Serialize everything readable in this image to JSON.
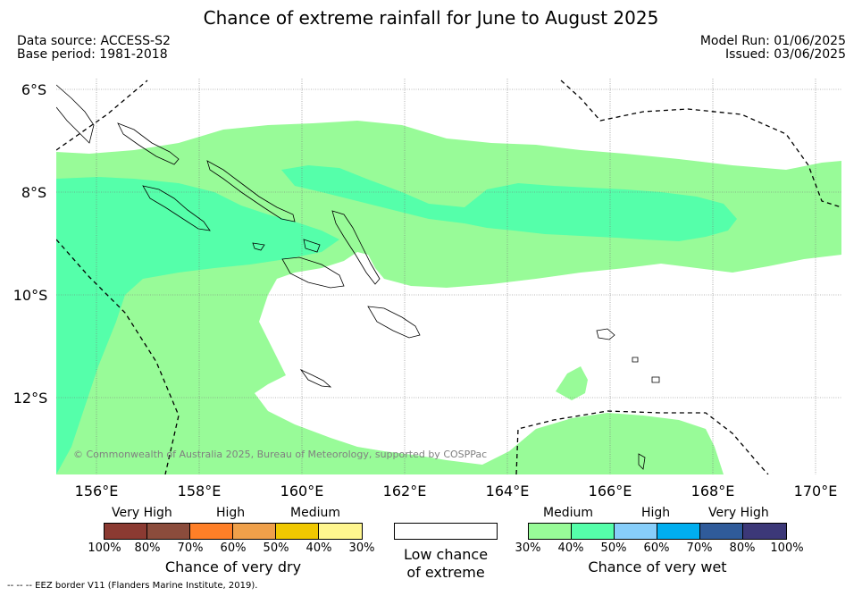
{
  "title": "Chance of extreme rainfall for June to August 2025",
  "meta": {
    "source": "Data source: ACCESS-S2",
    "base_period": "Base period: 1981-2018",
    "model_run": "Model Run: 01/06/2025",
    "issued": "Issued: 03/06/2025"
  },
  "map": {
    "lat_labels": [
      "6°S",
      "8°S",
      "10°S",
      "12°S"
    ],
    "lon_labels": [
      "156°E",
      "158°E",
      "160°E",
      "162°E",
      "164°E",
      "166°E",
      "168°E",
      "170°E"
    ],
    "credit": "© Commonwealth of Australia 2025, Bureau of Meteorology, supported by COSPPac"
  },
  "legend": {
    "dry": {
      "categories": [
        "Very High",
        "High",
        "Medium"
      ],
      "ticks": [
        "100%",
        "80%",
        "70%",
        "60%",
        "50%",
        "40%",
        "30%"
      ],
      "colors": [
        "#8b3a32",
        "#8b4c3c",
        "#ff7f27",
        "#efa04a",
        "#f0c800",
        "#fff68f"
      ],
      "title": "Chance of very dry"
    },
    "low": {
      "title_line1": "Low chance",
      "title_line2": "of extreme",
      "color": "#ffffff"
    },
    "wet": {
      "categories": [
        "Medium",
        "High",
        "Very High"
      ],
      "ticks": [
        "30%",
        "40%",
        "50%",
        "60%",
        "70%",
        "80%",
        "100%"
      ],
      "colors": [
        "#98fb98",
        "#55ffaa",
        "#87cefa",
        "#00aeef",
        "#2f5b9a",
        "#3c3878"
      ],
      "title": "Chance of very wet"
    }
  },
  "colors": {
    "medium_wet": "#98fb98",
    "high_wet": "#55ffaa"
  },
  "footnote": "-- -- -- EEZ border V11 (Flanders Marine Institute, 2019)."
}
